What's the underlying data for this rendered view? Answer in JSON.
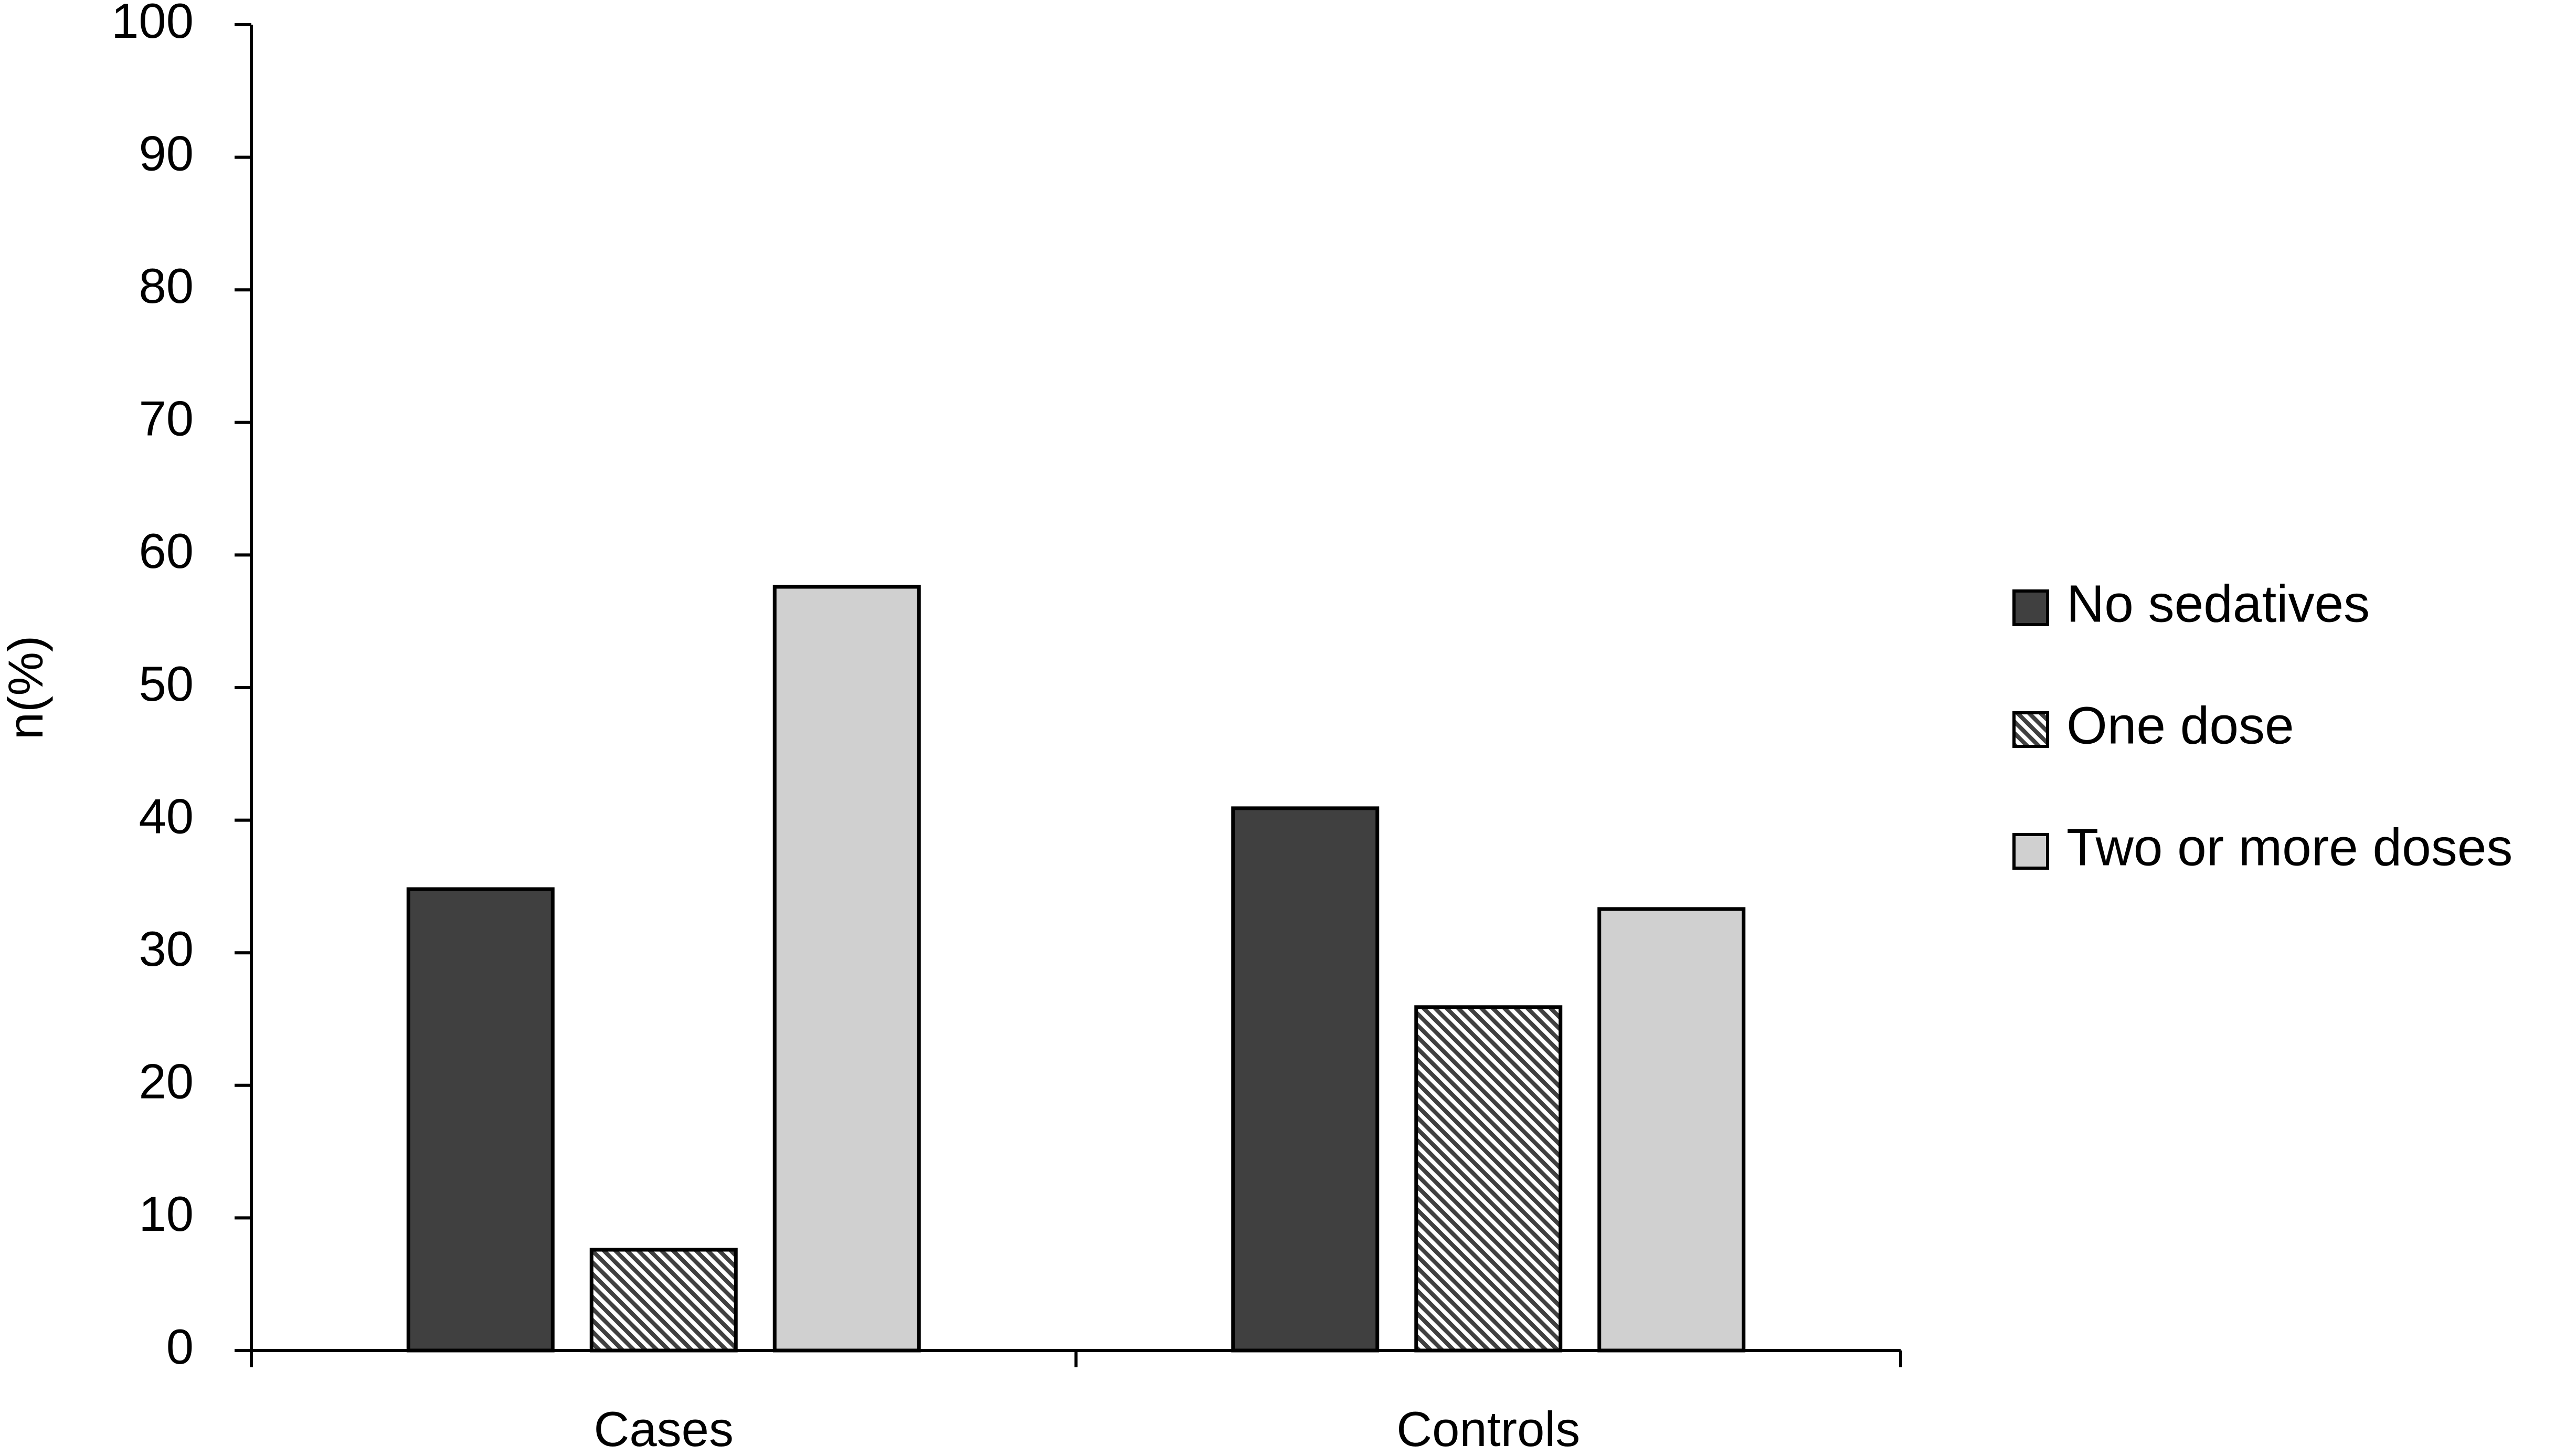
{
  "chart_data": {
    "type": "bar",
    "y_label": "n(%)",
    "categories": [
      "Cases",
      "Controls"
    ],
    "series": [
      {
        "name": "No sedatives",
        "color": "#404040",
        "values": [
          34.8,
          40.9
        ]
      },
      {
        "name": "One dose",
        "color": "#404040",
        "hatch": true,
        "values": [
          7.6,
          25.9
        ]
      },
      {
        "name": "Two or more doses",
        "color": "#d0d0d0",
        "values": [
          57.6,
          33.3
        ]
      }
    ],
    "ylim": [
      0,
      100
    ],
    "yticks": [
      0,
      10,
      20,
      30,
      40,
      50,
      60,
      70,
      80,
      90,
      100
    ],
    "grid": false,
    "legend": "right"
  }
}
